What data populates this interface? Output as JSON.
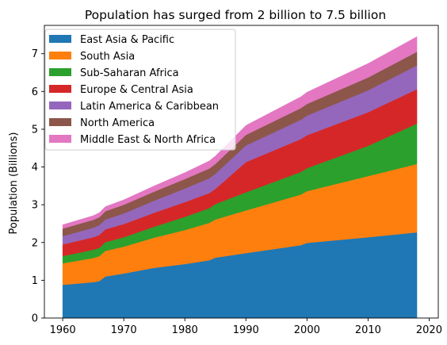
{
  "chart_data": {
    "type": "area",
    "stacked": true,
    "title": "Population has surged from 2 billion to 7.5 billion",
    "xlabel": "",
    "ylabel": "Population (Billions)",
    "xlim": [
      1957,
      2021.5
    ],
    "ylim": [
      0,
      7.75
    ],
    "xticks": [
      1960,
      1970,
      1980,
      1990,
      2000,
      2010,
      2020
    ],
    "yticks": [
      0,
      1,
      2,
      3,
      4,
      5,
      6,
      7
    ],
    "grid": false,
    "legend_position": "top-left",
    "x": [
      1960,
      1965,
      1966,
      1967,
      1970,
      1975,
      1980,
      1984,
      1985,
      1990,
      1999,
      2000,
      2010,
      2018
    ],
    "series": [
      {
        "name": "East Asia & Pacific",
        "color": "#1f77b4",
        "values": [
          0.88,
          0.95,
          0.98,
          1.1,
          1.18,
          1.33,
          1.43,
          1.53,
          1.6,
          1.72,
          1.93,
          1.99,
          2.14,
          2.27
        ]
      },
      {
        "name": "South Asia",
        "color": "#ff7f0e",
        "values": [
          0.57,
          0.64,
          0.66,
          0.68,
          0.71,
          0.8,
          0.9,
          0.99,
          1.01,
          1.13,
          1.34,
          1.37,
          1.62,
          1.81
        ]
      },
      {
        "name": "Sub-Saharan Africa",
        "color": "#2ca02c",
        "values": [
          0.19,
          0.22,
          0.22,
          0.23,
          0.25,
          0.29,
          0.35,
          0.39,
          0.41,
          0.48,
          0.6,
          0.61,
          0.8,
          1.07
        ]
      },
      {
        "name": "Europe & Central Asia",
        "color": "#d62728",
        "values": [
          0.31,
          0.33,
          0.34,
          0.34,
          0.35,
          0.37,
          0.39,
          0.4,
          0.4,
          0.8,
          0.87,
          0.87,
          0.89,
          0.91
        ]
      },
      {
        "name": "Latin America & Caribbean",
        "color": "#9467bd",
        "values": [
          0.22,
          0.25,
          0.26,
          0.26,
          0.28,
          0.32,
          0.36,
          0.39,
          0.4,
          0.44,
          0.51,
          0.52,
          0.58,
          0.63
        ]
      },
      {
        "name": "North America",
        "color": "#8c564b",
        "values": [
          0.2,
          0.21,
          0.21,
          0.22,
          0.23,
          0.24,
          0.25,
          0.26,
          0.26,
          0.28,
          0.31,
          0.31,
          0.34,
          0.36
        ]
      },
      {
        "name": "Middle East & North Africa",
        "color": "#e377c2",
        "values": [
          0.1,
          0.11,
          0.12,
          0.12,
          0.13,
          0.15,
          0.17,
          0.2,
          0.21,
          0.25,
          0.3,
          0.31,
          0.37,
          0.4
        ]
      }
    ]
  }
}
